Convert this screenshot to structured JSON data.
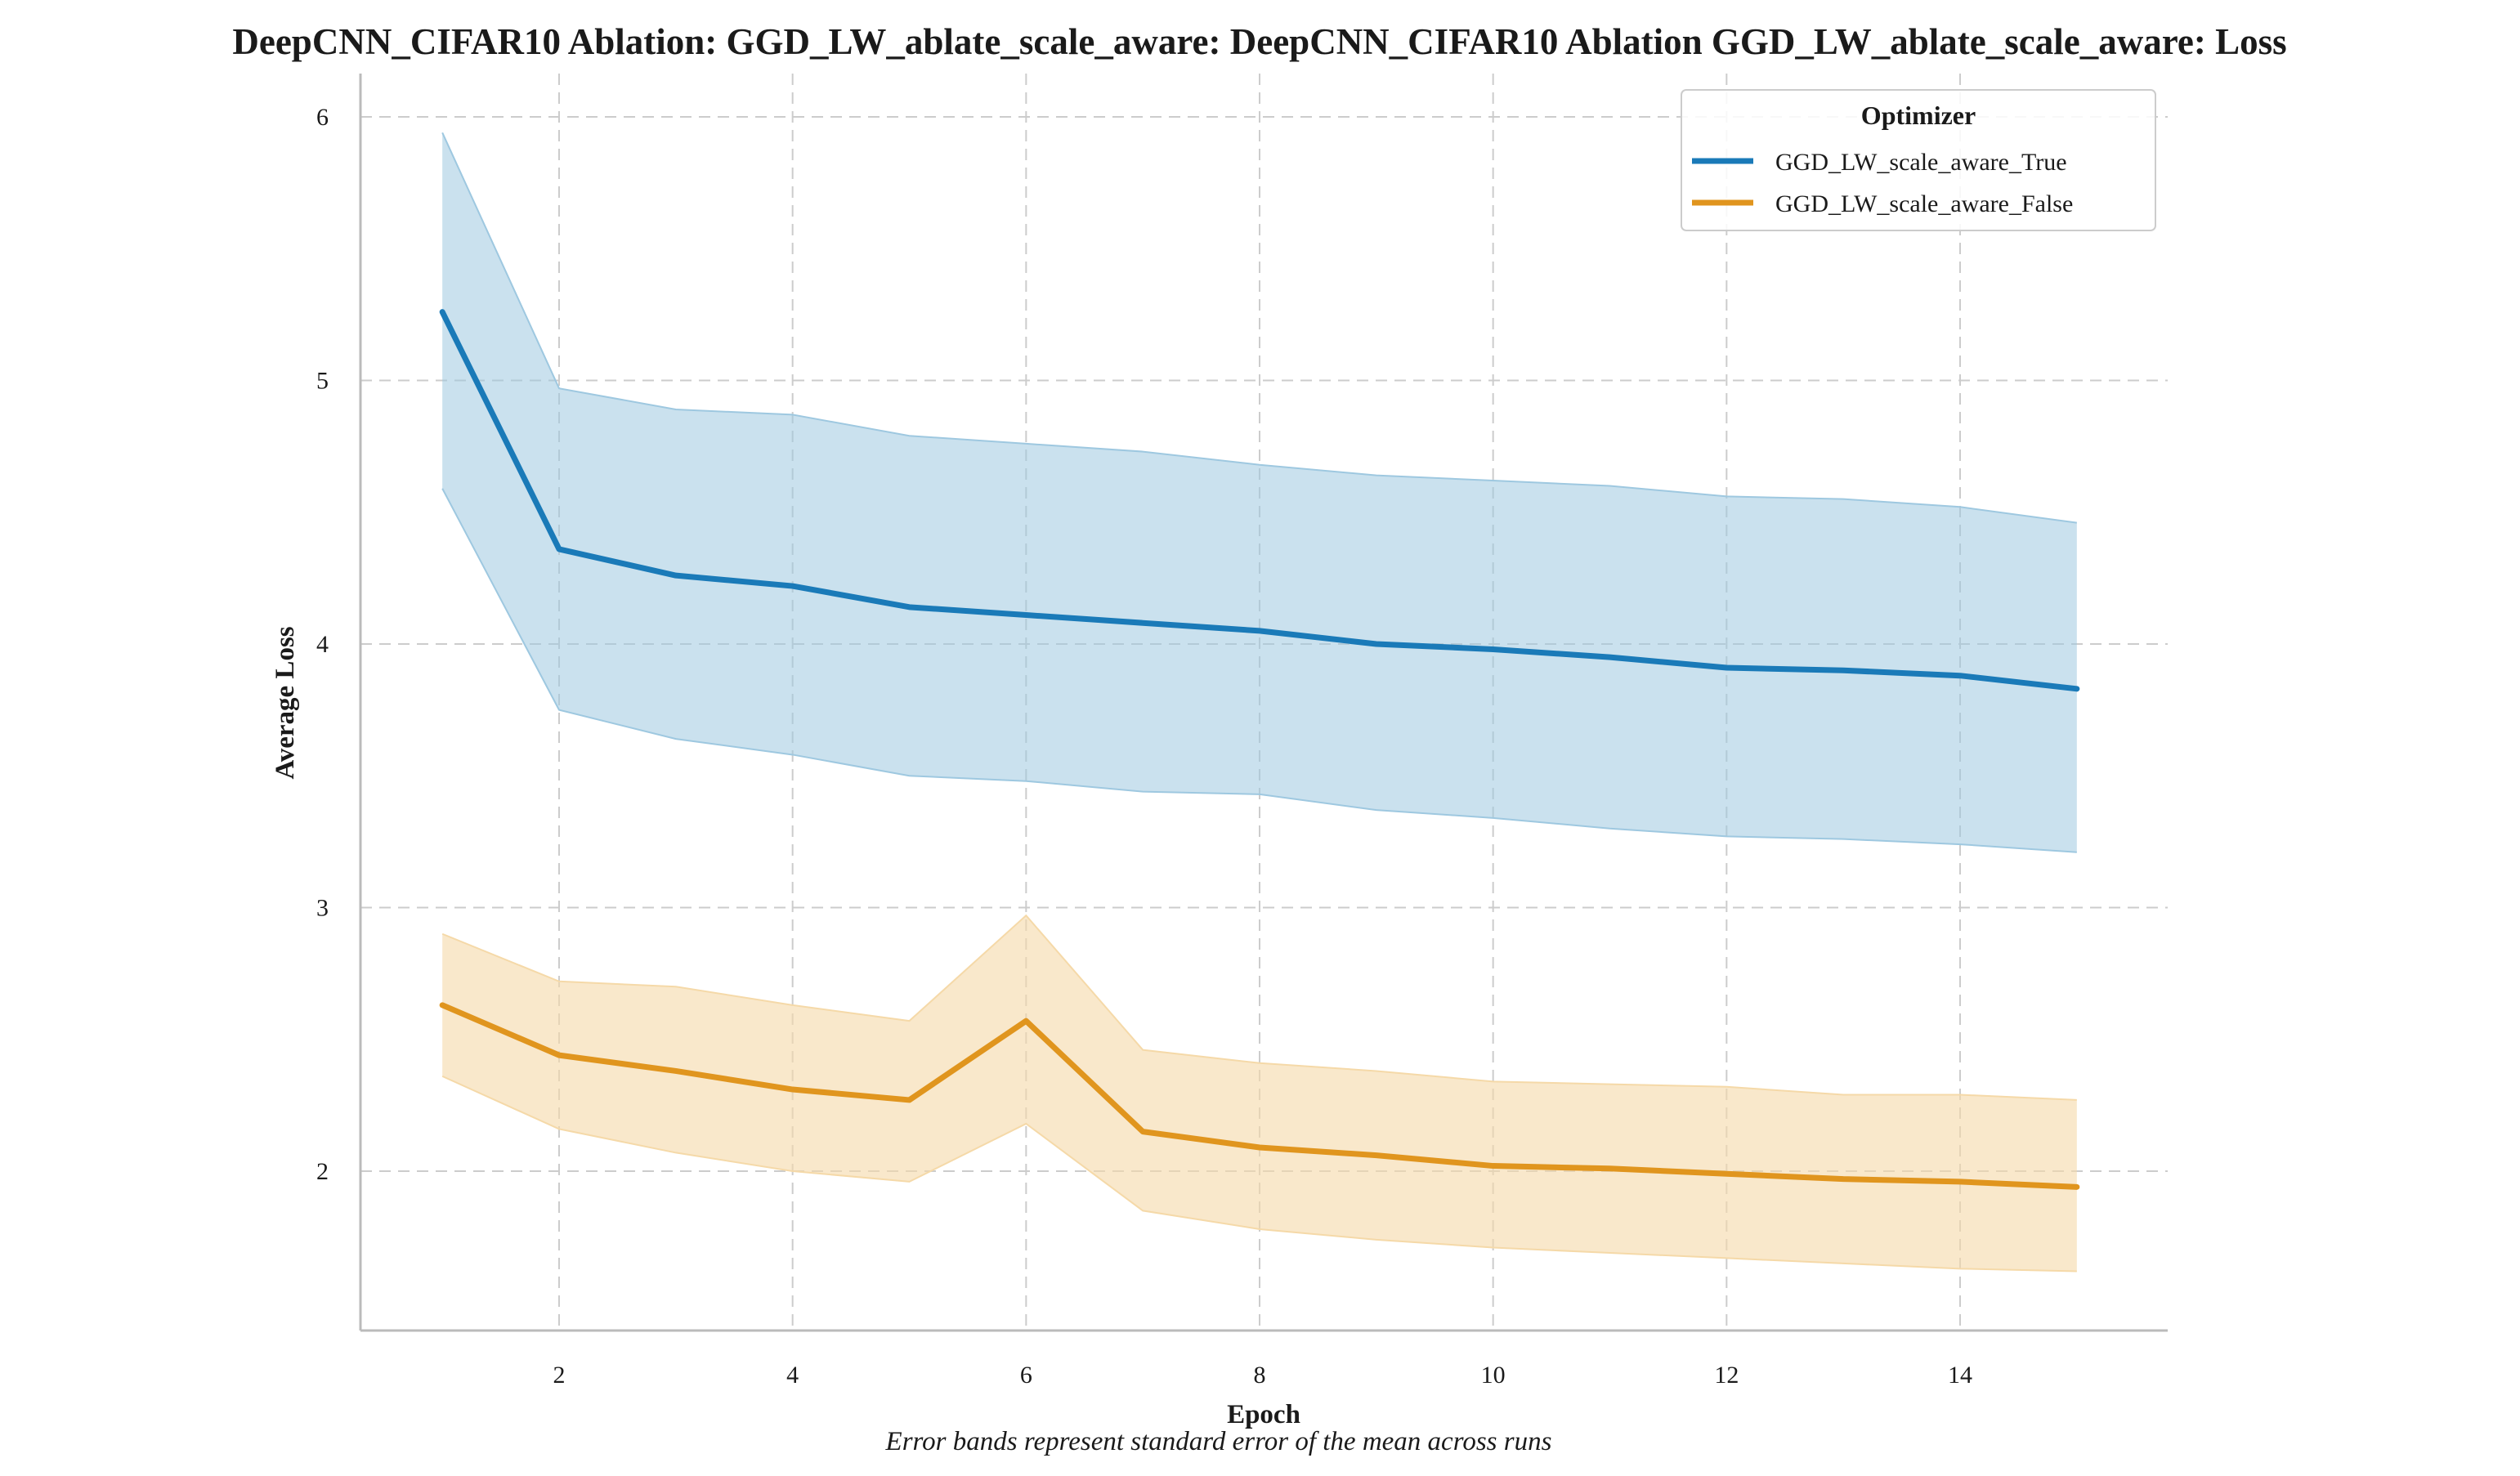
{
  "chart_data": {
    "type": "line",
    "title": "DeepCNN_CIFAR10 Ablation: GGD_LW_ablate_scale_aware: DeepCNN_CIFAR10 Ablation GGD_LW_ablate_scale_aware: Loss",
    "xlabel": "Epoch",
    "ylabel": "Average Loss",
    "caption": "Error bands represent standard error of the mean across runs",
    "xlim": [
      0.3,
      15.7
    ],
    "ylim": [
      1.4,
      6.2
    ],
    "xticks": [
      2,
      4,
      6,
      8,
      10,
      12,
      14
    ],
    "yticks": [
      2,
      3,
      4,
      5,
      6
    ],
    "grid": true,
    "legend": {
      "title": "Optimizer",
      "placement": "top-right"
    },
    "x": [
      1,
      2,
      3,
      4,
      5,
      6,
      7,
      8,
      9,
      10,
      11,
      12,
      13,
      14,
      15
    ],
    "series": [
      {
        "name": "GGD_LW_scale_aware_True",
        "color": "#1a7ab8",
        "band_color": "#9ec8e0",
        "values": [
          5.26,
          4.36,
          4.26,
          4.22,
          4.14,
          4.11,
          4.08,
          4.05,
          4.0,
          3.98,
          3.95,
          3.91,
          3.9,
          3.88,
          3.83
        ],
        "upper": [
          5.94,
          4.97,
          4.89,
          4.87,
          4.79,
          4.76,
          4.73,
          4.68,
          4.64,
          4.62,
          4.6,
          4.56,
          4.55,
          4.52,
          4.46
        ],
        "lower": [
          4.59,
          3.75,
          3.64,
          3.58,
          3.5,
          3.48,
          3.44,
          3.43,
          3.37,
          3.34,
          3.3,
          3.27,
          3.26,
          3.24,
          3.21
        ]
      },
      {
        "name": "GGD_LW_scale_aware_False",
        "color": "#e0951e",
        "band_color": "#f5d9a8",
        "values": [
          2.63,
          2.44,
          2.38,
          2.31,
          2.27,
          2.57,
          2.15,
          2.09,
          2.06,
          2.02,
          2.01,
          1.99,
          1.97,
          1.96,
          1.94
        ],
        "upper": [
          2.9,
          2.72,
          2.7,
          2.63,
          2.57,
          2.97,
          2.46,
          2.41,
          2.38,
          2.34,
          2.33,
          2.32,
          2.29,
          2.29,
          2.27
        ],
        "lower": [
          2.36,
          2.16,
          2.07,
          2.0,
          1.96,
          2.18,
          1.85,
          1.78,
          1.74,
          1.71,
          1.69,
          1.67,
          1.65,
          1.63,
          1.62
        ]
      }
    ]
  }
}
